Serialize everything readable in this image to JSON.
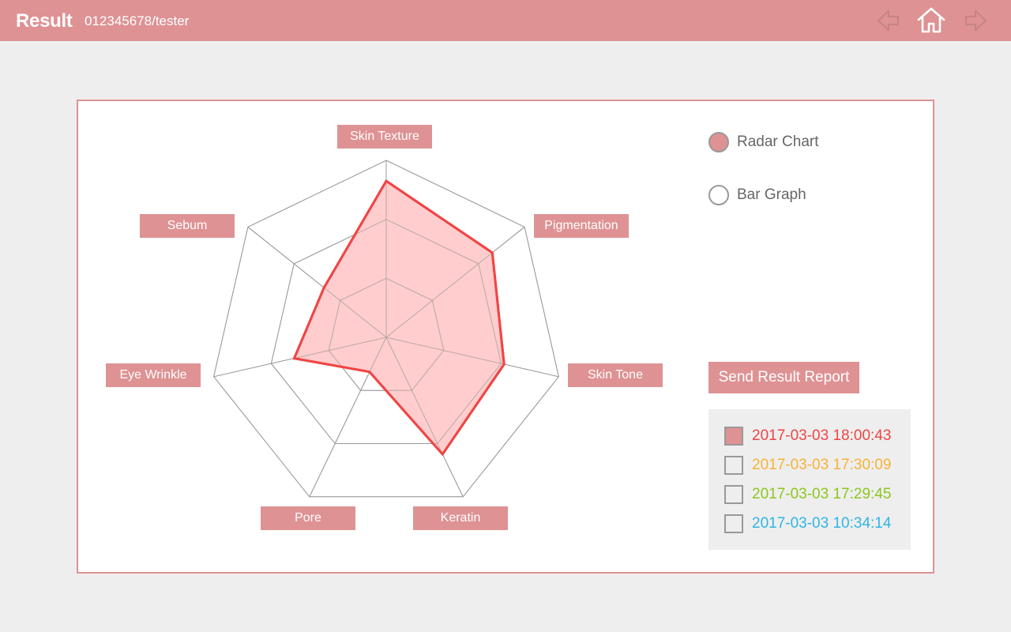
{
  "header": {
    "title": "Result",
    "subtitle": "012345678/tester",
    "back_icon": "arrow-left-icon",
    "home_icon": "home-icon",
    "forward_icon": "arrow-right-icon"
  },
  "colors": {
    "accent": "#de9293",
    "series_stroke": "#f04545",
    "series_fill": "#ffc4c4",
    "grid": "#999999"
  },
  "chart_data": {
    "type": "radar",
    "axes": [
      "Skin Texture",
      "Pigmentation",
      "Skin Tone",
      "Keratin",
      "Pore",
      "Eye Wrinkle",
      "Sebum"
    ],
    "rings": 3,
    "max": 3,
    "grid": true,
    "series": [
      {
        "values": [
          2.65,
          2.3,
          2.05,
          2.2,
          0.65,
          1.6,
          1.35
        ]
      }
    ]
  },
  "view_options": [
    {
      "label": "Radar Chart",
      "selected": true
    },
    {
      "label": "Bar Graph",
      "selected": false
    }
  ],
  "send_button": "Send Result Report",
  "history": [
    {
      "label": "2017-03-03 18:00:43",
      "checked": true,
      "color": "#f04545"
    },
    {
      "label": "2017-03-03 17:30:09",
      "checked": false,
      "color": "#f5b335"
    },
    {
      "label": "2017-03-03 17:29:45",
      "checked": false,
      "color": "#8cc71b"
    },
    {
      "label": "2017-03-03 10:34:14",
      "checked": false,
      "color": "#2fb5e4"
    }
  ]
}
